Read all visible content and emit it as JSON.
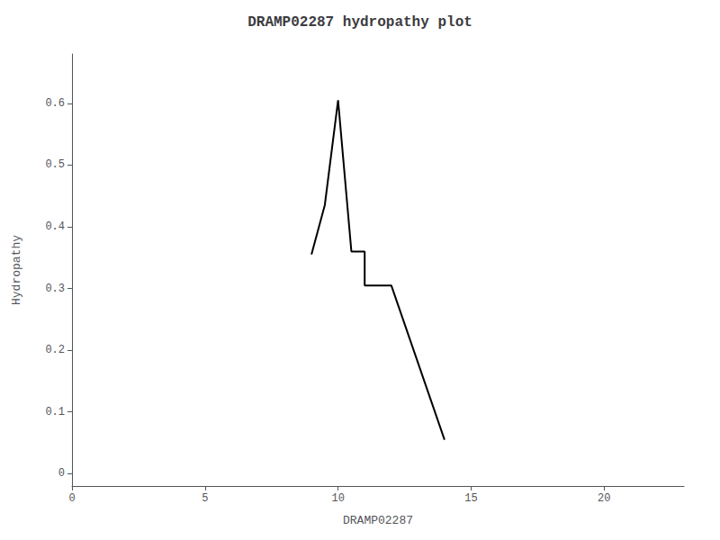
{
  "chart_data": {
    "type": "line",
    "title": "DRAMP02287 hydropathy plot",
    "xlabel": "DRAMP02287",
    "ylabel": "Hydropathy",
    "x": [
      9.0,
      9.5,
      10.0,
      10.5,
      11.0,
      11.0,
      12.0,
      12.0,
      14.0
    ],
    "values": [
      0.355,
      0.435,
      0.605,
      0.36,
      0.36,
      0.305,
      0.305,
      0.305,
      0.055
    ],
    "color": "#000000",
    "xlim": [
      0,
      23
    ],
    "xticks": [
      0,
      5,
      10,
      15,
      20
    ],
    "ylim": [
      -0.02,
      0.68
    ],
    "yticks": [
      0,
      0.1,
      0.2,
      0.3,
      0.4,
      0.5,
      0.6
    ],
    "grid": false
  }
}
